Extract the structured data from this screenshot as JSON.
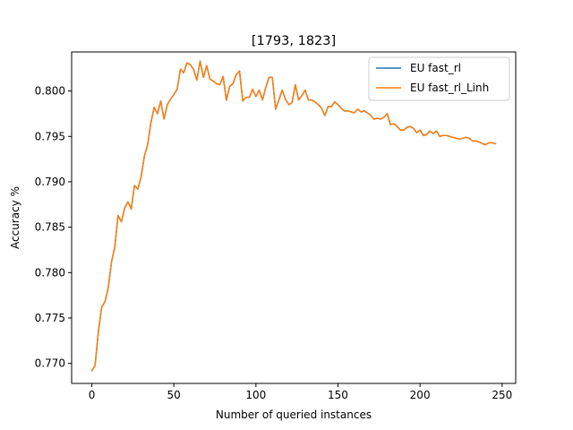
{
  "chart_data": {
    "type": "line",
    "title": "[1793, 1823]",
    "xlabel": "Number of queried instances",
    "ylabel": "Accuracy %",
    "xlim": [
      -12.3,
      258.3
    ],
    "ylim": [
      0.7678,
      0.8043
    ],
    "xticks": [
      0,
      50,
      100,
      150,
      200,
      250
    ],
    "yticks": [
      0.77,
      0.775,
      0.78,
      0.785,
      0.79,
      0.795,
      0.8
    ],
    "xtick_labels": [
      "0",
      "50",
      "100",
      "150",
      "200",
      "250"
    ],
    "ytick_labels": [
      "0.770",
      "0.775",
      "0.780",
      "0.785",
      "0.790",
      "0.795",
      "0.800"
    ],
    "grid": false,
    "legend_position": "top-right",
    "series": [
      {
        "name": "EU fast_rl",
        "color": "#1f77b4",
        "x": [
          0,
          2,
          4,
          6,
          8,
          10,
          12,
          14,
          16,
          18,
          20,
          22,
          24,
          26,
          28,
          30,
          32,
          34,
          36,
          38,
          40,
          42,
          44,
          46,
          48,
          50,
          52,
          54,
          56,
          58,
          60,
          62,
          64,
          66,
          68,
          70,
          72,
          74,
          76,
          78,
          80,
          82,
          84,
          86,
          88,
          90,
          92,
          94,
          96,
          98,
          100,
          102,
          104,
          106,
          108,
          110,
          112,
          114,
          116,
          118,
          120,
          122,
          124,
          126,
          128,
          130,
          132,
          134,
          136,
          138,
          140,
          142,
          144,
          146,
          148,
          150,
          152,
          154,
          156,
          158,
          160,
          162,
          164,
          166,
          168,
          170,
          172,
          174,
          176,
          178,
          180,
          182,
          184,
          186,
          188,
          190,
          192,
          194,
          196,
          198,
          200,
          202,
          204,
          206,
          208,
          210,
          212,
          214,
          216,
          218,
          220,
          222,
          224,
          226,
          228,
          230,
          232,
          234,
          236,
          238,
          240,
          242,
          244,
          246
        ],
        "values": [
          0.7692,
          0.7698,
          0.7735,
          0.7762,
          0.7768,
          0.7783,
          0.7812,
          0.7828,
          0.7863,
          0.7856,
          0.7871,
          0.7878,
          0.787,
          0.7896,
          0.7892,
          0.7905,
          0.7928,
          0.7941,
          0.7965,
          0.7982,
          0.7975,
          0.7989,
          0.7969,
          0.7985,
          0.7991,
          0.7996,
          0.8002,
          0.8024,
          0.802,
          0.8031,
          0.8029,
          0.8024,
          0.8012,
          0.8033,
          0.8015,
          0.8028,
          0.8013,
          0.8011,
          0.8008,
          0.8007,
          0.8016,
          0.799,
          0.8005,
          0.8008,
          0.8018,
          0.8022,
          0.7989,
          0.7993,
          0.7993,
          0.8002,
          0.7994,
          0.8001,
          0.799,
          0.8004,
          0.8015,
          0.8015,
          0.798,
          0.799,
          0.8001,
          0.7991,
          0.7985,
          0.7987,
          0.8007,
          0.799,
          0.7995,
          0.8001,
          0.799,
          0.799,
          0.7988,
          0.7985,
          0.7981,
          0.7973,
          0.7983,
          0.7983,
          0.7988,
          0.7985,
          0.7981,
          0.7978,
          0.7978,
          0.7977,
          0.7976,
          0.798,
          0.7977,
          0.7978,
          0.7976,
          0.7973,
          0.7969,
          0.797,
          0.7969,
          0.7971,
          0.7975,
          0.7963,
          0.7964,
          0.7961,
          0.7957,
          0.7957,
          0.796,
          0.7961,
          0.7959,
          0.7954,
          0.7957,
          0.7951,
          0.7952,
          0.7956,
          0.7953,
          0.7956,
          0.795,
          0.7951,
          0.7951,
          0.795,
          0.7949,
          0.7948,
          0.7947,
          0.7948,
          0.7949,
          0.7948,
          0.7945,
          0.7945,
          0.7944,
          0.7942,
          0.7941,
          0.7943,
          0.7943,
          0.7942
        ]
      },
      {
        "name": "EU fast_rl_Linh",
        "color": "#ff7f0e",
        "x": [
          0,
          2,
          4,
          6,
          8,
          10,
          12,
          14,
          16,
          18,
          20,
          22,
          24,
          26,
          28,
          30,
          32,
          34,
          36,
          38,
          40,
          42,
          44,
          46,
          48,
          50,
          52,
          54,
          56,
          58,
          60,
          62,
          64,
          66,
          68,
          70,
          72,
          74,
          76,
          78,
          80,
          82,
          84,
          86,
          88,
          90,
          92,
          94,
          96,
          98,
          100,
          102,
          104,
          106,
          108,
          110,
          112,
          114,
          116,
          118,
          120,
          122,
          124,
          126,
          128,
          130,
          132,
          134,
          136,
          138,
          140,
          142,
          144,
          146,
          148,
          150,
          152,
          154,
          156,
          158,
          160,
          162,
          164,
          166,
          168,
          170,
          172,
          174,
          176,
          178,
          180,
          182,
          184,
          186,
          188,
          190,
          192,
          194,
          196,
          198,
          200,
          202,
          204,
          206,
          208,
          210,
          212,
          214,
          216,
          218,
          220,
          222,
          224,
          226,
          228,
          230,
          232,
          234,
          236,
          238,
          240,
          242,
          244,
          246
        ],
        "values": [
          0.7692,
          0.7698,
          0.7735,
          0.7762,
          0.7768,
          0.7783,
          0.7812,
          0.7828,
          0.7863,
          0.7856,
          0.7871,
          0.7878,
          0.787,
          0.7896,
          0.7892,
          0.7905,
          0.7928,
          0.7941,
          0.7965,
          0.7982,
          0.7975,
          0.7989,
          0.7969,
          0.7985,
          0.7991,
          0.7996,
          0.8002,
          0.8024,
          0.802,
          0.8031,
          0.8029,
          0.8024,
          0.8012,
          0.8033,
          0.8015,
          0.8028,
          0.8013,
          0.8011,
          0.8008,
          0.8007,
          0.8016,
          0.799,
          0.8005,
          0.8008,
          0.8018,
          0.8022,
          0.7989,
          0.7993,
          0.7993,
          0.8002,
          0.7994,
          0.8001,
          0.799,
          0.8004,
          0.8015,
          0.8015,
          0.798,
          0.799,
          0.8001,
          0.7991,
          0.7985,
          0.7987,
          0.8007,
          0.799,
          0.7995,
          0.8001,
          0.799,
          0.799,
          0.7988,
          0.7985,
          0.7981,
          0.7973,
          0.7983,
          0.7983,
          0.7988,
          0.7985,
          0.7981,
          0.7978,
          0.7978,
          0.7977,
          0.7976,
          0.798,
          0.7977,
          0.7978,
          0.7976,
          0.7973,
          0.7969,
          0.797,
          0.7969,
          0.7971,
          0.7975,
          0.7963,
          0.7964,
          0.7961,
          0.7957,
          0.7957,
          0.796,
          0.7961,
          0.7959,
          0.7954,
          0.7957,
          0.7951,
          0.7952,
          0.7956,
          0.7953,
          0.7956,
          0.795,
          0.7951,
          0.7951,
          0.795,
          0.7949,
          0.7948,
          0.7947,
          0.7948,
          0.7949,
          0.7948,
          0.7945,
          0.7945,
          0.7944,
          0.7942,
          0.7941,
          0.7943,
          0.7943,
          0.7942
        ]
      }
    ]
  }
}
